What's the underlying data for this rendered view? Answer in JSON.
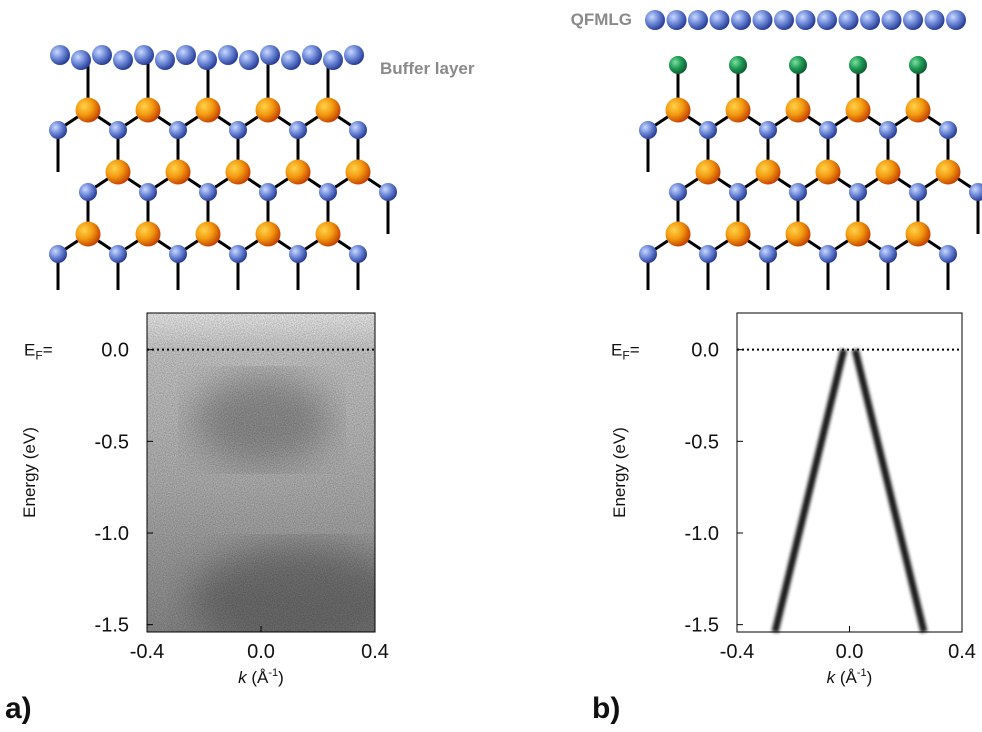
{
  "diagrams": [
    {
      "label": "Buffer layer"
    },
    {
      "label": "QFMLG"
    }
  ],
  "chart_data": [
    {
      "type": "image",
      "panel_label": "a)",
      "xlabel": [
        "k",
        " (Å",
        "-1",
        ")"
      ],
      "ylabel": "Energy (eV)",
      "xlim": [
        -0.4,
        0.4
      ],
      "xticks": [
        -0.4,
        {
          "value": 0,
          "label": "0.0"
        },
        0.4
      ],
      "ylim": [
        -1.54,
        0.2
      ],
      "yticks": [
        {
          "value": 0,
          "label": "0.0"
        },
        -0.5,
        {
          "value": -1,
          "label": "-1.0"
        },
        -1.5
      ],
      "reference_line": {
        "value": 0,
        "label": [
          "E",
          "F",
          "="
        ]
      }
    },
    {
      "type": "line",
      "panel_label": "b)",
      "xlabel": [
        "k",
        " (Å",
        "-1",
        ")"
      ],
      "ylabel": "Energy (eV)",
      "xlim": [
        -0.4,
        0.4
      ],
      "xticks": [
        -0.4,
        {
          "value": 0,
          "label": "0.0"
        },
        0.4
      ],
      "ylim": [
        -1.54,
        0.2
      ],
      "yticks": [
        {
          "value": 0,
          "label": "0.0"
        },
        -0.5,
        {
          "value": -1,
          "label": "-1.0"
        },
        -1.5
      ],
      "reference_line": {
        "value": 0,
        "label": [
          "E",
          "F",
          "="
        ]
      },
      "series": [
        {
          "color": "#1a1a1a",
          "x": [
            -0.02,
            -0.265
          ],
          "values": [
            0,
            -1.54
          ]
        },
        {
          "color": "#1a1a1a",
          "x": [
            0.02,
            0.265
          ],
          "values": [
            0,
            -1.54
          ]
        }
      ]
    }
  ]
}
